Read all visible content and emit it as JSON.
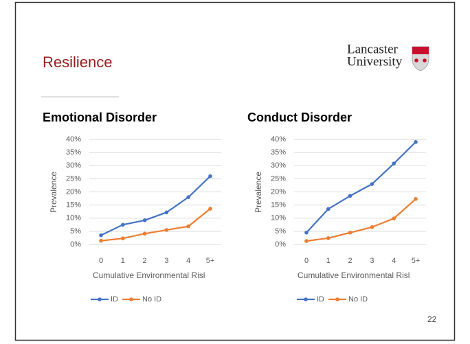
{
  "title": "Resilience",
  "logo": [
    "Lancaster",
    "University"
  ],
  "page_number": 22,
  "chart_data": [
    {
      "type": "line",
      "title": "Emotional Disorder",
      "categories": [
        "0",
        "1",
        "2",
        "3",
        "4",
        "5+"
      ],
      "series": [
        {
          "name": "ID",
          "color": "#4472c4",
          "values": [
            3.5,
            7.5,
            9.2,
            12.2,
            18,
            26
          ]
        },
        {
          "name": "No ID",
          "color": "#ed7d31",
          "values": [
            1.4,
            2.3,
            4.1,
            5.5,
            6.9,
            13.6
          ]
        }
      ],
      "ylabel": "Prevalence",
      "xlabel": "Cumulative Environmental Risl",
      "ylim": [
        0,
        40
      ],
      "yticks": [
        {
          "value": 0,
          "label": "0%"
        },
        {
          "value": 5,
          "label": "5%"
        },
        {
          "value": 10,
          "label": "10%"
        },
        {
          "value": 15,
          "label": "15%"
        },
        {
          "value": 20,
          "label": "20%"
        },
        {
          "value": 25,
          "label": "25%"
        },
        {
          "value": 30,
          "label": "30%"
        },
        {
          "value": 35,
          "label": "35%"
        },
        {
          "value": 40,
          "label": "40%"
        }
      ],
      "grid": true,
      "legend": "bottom"
    },
    {
      "type": "line",
      "title": "Conduct Disorder",
      "categories": [
        "0",
        "1",
        "2",
        "3",
        "4",
        "5+"
      ],
      "series": [
        {
          "name": "ID",
          "color": "#4472c4",
          "values": [
            4.5,
            13.5,
            18.5,
            23,
            30.8,
            39
          ]
        },
        {
          "name": "No ID",
          "color": "#ed7d31",
          "values": [
            1.3,
            2.4,
            4.5,
            6.6,
            9.9,
            17.3
          ]
        }
      ],
      "ylabel": "Prevalence",
      "xlabel": "Cumulative Environmental Risl",
      "ylim": [
        0,
        40
      ],
      "yticks": [
        {
          "value": 0,
          "label": "0%"
        },
        {
          "value": 5,
          "label": "5%"
        },
        {
          "value": 10,
          "label": "10%"
        },
        {
          "value": 15,
          "label": "15%"
        },
        {
          "value": 20,
          "label": "20%"
        },
        {
          "value": 25,
          "label": "25%"
        },
        {
          "value": 30,
          "label": "30%"
        },
        {
          "value": 35,
          "label": "35%"
        },
        {
          "value": 40,
          "label": "40%"
        }
      ],
      "grid": true,
      "legend": "bottom"
    }
  ]
}
